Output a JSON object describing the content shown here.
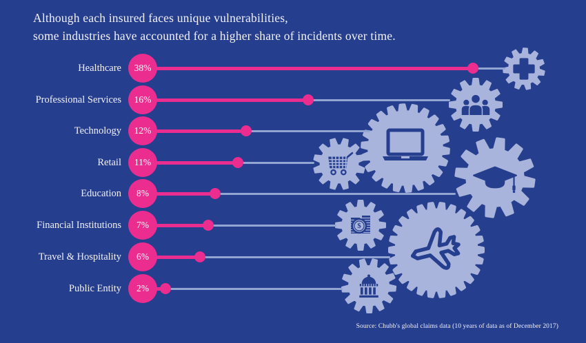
{
  "title": {
    "line1": "Although each insured faces unique vulnerabilities,",
    "line2": "some industries have accounted for a higher share of incidents over time."
  },
  "source": "Source: Chubb's global claims data  (10 years of data as of December 2017)",
  "colors": {
    "background": "#263E8E",
    "accent_pink": "#EB2D90",
    "gear": "#A9B4DC",
    "track_line": "#91A4D2",
    "text": "#F3F2F7",
    "icon_on_gear": "#263E8E"
  },
  "chart_data": {
    "type": "bar",
    "subtype": "lollipop",
    "title": "Although each insured faces unique vulnerabilities, some industries have accounted for a higher share of incidents over time.",
    "categories": [
      "Healthcare",
      "Professional Services",
      "Technology",
      "Retail",
      "Education",
      "Financial Institutions",
      "Travel & Hospitality",
      "Public Entity"
    ],
    "values": [
      38,
      16,
      12,
      11,
      8,
      7,
      6,
      2
    ],
    "value_labels": [
      "38%",
      "16%",
      "12%",
      "11%",
      "8%",
      "7%",
      "6%",
      "2%"
    ],
    "icons": [
      "healthcare-cross",
      "professional-services-people",
      "technology-laptop",
      "retail-shopping-cart",
      "education-graduation-cap",
      "financial-coins-dollar",
      "travel-airplane",
      "public-entity-capitol-building"
    ],
    "xlabel": "",
    "ylabel": "",
    "xlim": [
      0,
      40
    ],
    "grid": false,
    "legend": "none",
    "orientation": "horizontal"
  }
}
